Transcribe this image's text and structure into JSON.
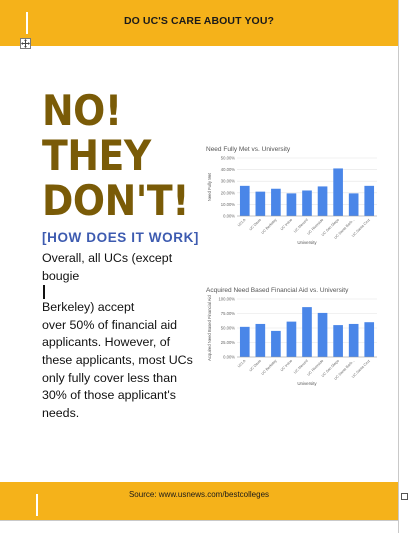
{
  "header": {
    "title": "DO UC'S CARE ABOUT YOU?"
  },
  "headline": {
    "lines": [
      "NO!",
      "THEY",
      "DON'T!"
    ]
  },
  "subhead": "[HOW DOES IT WORK]",
  "body": {
    "line1": "Overall, all UCs (except",
    "line2a": "bougie",
    "line2b": "Berkeley) accept",
    "line3": "over 50% of financial aid",
    "line4": "applicants. However, of",
    "line5": "these applicants, most UCs",
    "line6": "only fully cover less than",
    "line7": "30% of those applicant's",
    "line8": "needs."
  },
  "colors": {
    "band": "#f5b21a",
    "headline": "#7a5b07",
    "subhead": "#3d5bb0",
    "bar": "#4a86e8"
  },
  "footer": {
    "source": "Source: www.usnews.com/bestcolleges"
  },
  "chart_data": [
    {
      "type": "bar",
      "title": "Need Fully Met vs. University",
      "xlabel": "University",
      "ylabel": "Need Fully Met",
      "ylim": [
        0,
        50
      ],
      "yticks": [
        "0.00%",
        "10.00%",
        "20.00%",
        "30.00%",
        "40.00%",
        "50.00%"
      ],
      "categories": [
        "UCLA",
        "UC Davis",
        "UC Berkeley",
        "UC Irvine",
        "UC Merced",
        "UC Riverside",
        "UC San Diego",
        "UC Santa Barb...",
        "UC Santa Cruz"
      ],
      "values": [
        26,
        21,
        23.5,
        19.5,
        22,
        25.5,
        41,
        19.5,
        26
      ],
      "grid": true
    },
    {
      "type": "bar",
      "title": "Acquired Need Based Financial Aid vs. University",
      "xlabel": "University",
      "ylabel": "Acquired Need Based Financial Aid",
      "ylim": [
        0,
        100
      ],
      "yticks": [
        "0.00%",
        "25.00%",
        "50.00%",
        "75.00%",
        "100.00%"
      ],
      "categories": [
        "UCLA",
        "UC Davis",
        "UC Berkeley",
        "UC Irvine",
        "UC Merced",
        "UC Riverside",
        "UC San Diego",
        "UC Santa Barb...",
        "UC Santa Cruz"
      ],
      "values": [
        52,
        57,
        45,
        61,
        86,
        76,
        55,
        57,
        60
      ],
      "grid": true
    }
  ]
}
